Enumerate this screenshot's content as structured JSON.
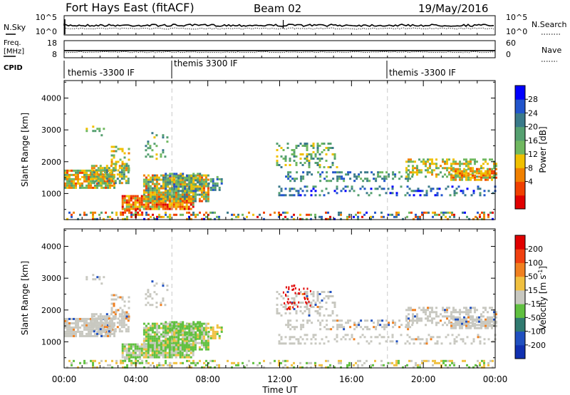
{
  "header": {
    "station": "Fort Hays East (fitACF)",
    "beam": "Beam 02",
    "date": "19/May/2016"
  },
  "params_panel": {
    "nsky_label": "N.Sky",
    "nsky_ticks": [
      "10^5",
      "10^0"
    ],
    "nsearch_label": "N.Search",
    "nsearch_ticks": [
      "10^5",
      "10^0"
    ],
    "freq_label_1": "Freq.",
    "freq_label_2": "[MHz]",
    "freq_ticks": [
      "18",
      "8"
    ],
    "nave_label": "Nave",
    "nave_ticks": [
      "60",
      "0"
    ],
    "cpid_label": "CPID",
    "cpid_segments": [
      {
        "start_hour": 0,
        "label": "themis -3300 IF"
      },
      {
        "start_hour": 6,
        "label": "themis 3300 IF"
      },
      {
        "start_hour": 18,
        "label": "themis -3300 IF"
      }
    ]
  },
  "chart_data": [
    {
      "type": "heatmap",
      "name": "power-panel",
      "ylabel": "Slant Range [km]",
      "xlim_hours": [
        0,
        24
      ],
      "ylim_km": [
        180,
        4550
      ],
      "yticks": [
        "1000",
        "2000",
        "3000",
        "4000"
      ],
      "colorbar": {
        "label": "Power [dB]",
        "ticks": [
          "28",
          "24",
          "20",
          "16",
          "12",
          "8",
          "4"
        ],
        "colors": [
          "#0000ff",
          "#2255cc",
          "#3a7a8a",
          "#55a070",
          "#70b860",
          "#f0c000",
          "#f08000",
          "#f04000",
          "#e00000"
        ]
      }
    },
    {
      "type": "heatmap",
      "name": "velocity-panel",
      "ylabel": "Slant Range [km]",
      "xlabel": "Time UT",
      "xticks": [
        "00:00",
        "04:00",
        "08:00",
        "12:00",
        "16:00",
        "20:00",
        "00:00"
      ],
      "xlim_hours": [
        0,
        24
      ],
      "ylim_km": [
        180,
        4550
      ],
      "yticks": [
        "1000",
        "2000",
        "3000",
        "4000"
      ],
      "colorbar": {
        "label": "Velocity [m s",
        "label_sup": "-1",
        "label_end": "]",
        "ticks": [
          "200",
          "100",
          "50",
          "15",
          "-15",
          "-50",
          "-100",
          "-200"
        ],
        "colors": [
          "#1030b0",
          "#2050c0",
          "#307a70",
          "#60c040",
          "#c8c8c0",
          "#f0c040",
          "#f08020",
          "#f04010",
          "#e00000"
        ]
      }
    }
  ]
}
